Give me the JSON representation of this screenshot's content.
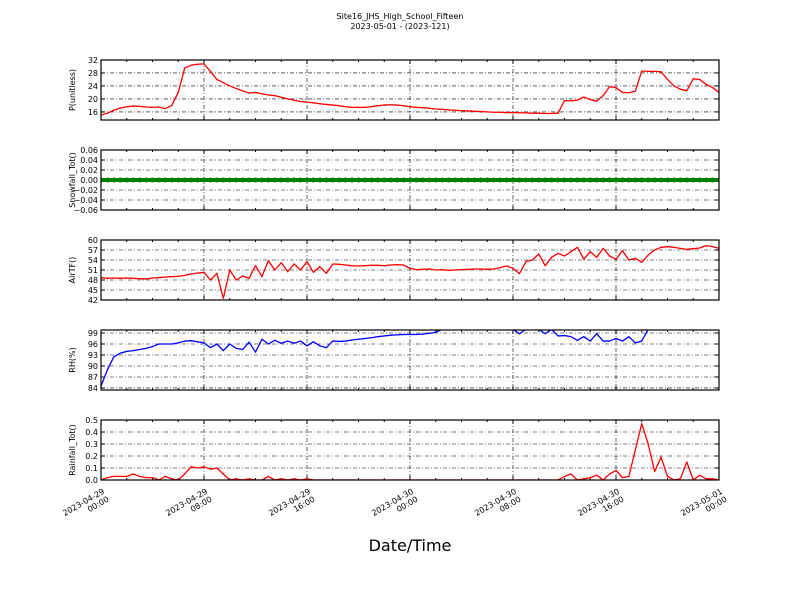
{
  "title": "Site16_JHS_High_School_Fifteen",
  "subtitle": "2023-05-01 - (2023-121)",
  "xlabel": "Date/Time",
  "chart_data": {
    "type": "line",
    "grid": true,
    "xlim": [
      "2023-04-29 00:00",
      "2023-05-01 00:00"
    ],
    "x_ticks": [
      "2023-04-29 00:00",
      "2023-04-29 08:00",
      "2023-04-29 16:00",
      "2023-04-30 00:00",
      "2023-04-30 08:00",
      "2023-04-30 16:00",
      "2023-05-01 00:00"
    ],
    "x_tick_labels": [
      [
        "2023-04-29",
        "00:00"
      ],
      [
        "2023-04-29",
        "08:00"
      ],
      [
        "2023-04-29",
        "16:00"
      ],
      [
        "2023-04-30",
        "00:00"
      ],
      [
        "2023-04-30",
        "08:00"
      ],
      [
        "2023-04-30",
        "16:00"
      ],
      [
        "2023-05-01",
        "00:00"
      ]
    ],
    "x": [
      "2023-04-29 00:00",
      "2023-04-29 00:30",
      "2023-04-29 01:00",
      "2023-04-29 01:30",
      "2023-04-29 02:00",
      "2023-04-29 02:30",
      "2023-04-29 03:00",
      "2023-04-29 03:30",
      "2023-04-29 04:00",
      "2023-04-29 04:30",
      "2023-04-29 05:00",
      "2023-04-29 05:30",
      "2023-04-29 06:00",
      "2023-04-29 06:30",
      "2023-04-29 07:00",
      "2023-04-29 07:30",
      "2023-04-29 08:00",
      "2023-04-29 08:30",
      "2023-04-29 09:00",
      "2023-04-29 09:30",
      "2023-04-29 10:00",
      "2023-04-29 10:30",
      "2023-04-29 11:00",
      "2023-04-29 11:30",
      "2023-04-29 12:00",
      "2023-04-29 12:30",
      "2023-04-29 13:00",
      "2023-04-29 13:30",
      "2023-04-29 14:00",
      "2023-04-29 14:30",
      "2023-04-29 15:00",
      "2023-04-29 15:30",
      "2023-04-29 16:00",
      "2023-04-29 16:30",
      "2023-04-29 17:00",
      "2023-04-29 17:30",
      "2023-04-29 18:00",
      "2023-04-29 18:30",
      "2023-04-29 19:00",
      "2023-04-29 19:30",
      "2023-04-29 20:00",
      "2023-04-29 20:30",
      "2023-04-29 21:00",
      "2023-04-29 21:30",
      "2023-04-29 22:00",
      "2023-04-29 22:30",
      "2023-04-29 23:00",
      "2023-04-29 23:30",
      "2023-04-30 00:00",
      "2023-04-30 00:30",
      "2023-04-30 01:00",
      "2023-04-30 01:30",
      "2023-04-30 02:00",
      "2023-04-30 02:30",
      "2023-04-30 03:00",
      "2023-04-30 03:30",
      "2023-04-30 04:00",
      "2023-04-30 04:30",
      "2023-04-30 05:00",
      "2023-04-30 05:30",
      "2023-04-30 06:00",
      "2023-04-30 06:30",
      "2023-04-30 07:00",
      "2023-04-30 07:30",
      "2023-04-30 08:00",
      "2023-04-30 08:30",
      "2023-04-30 09:00",
      "2023-04-30 09:30",
      "2023-04-30 10:00",
      "2023-04-30 10:30",
      "2023-04-30 11:00",
      "2023-04-30 11:30",
      "2023-04-30 12:00",
      "2023-04-30 12:30",
      "2023-04-30 13:00",
      "2023-04-30 13:30",
      "2023-04-30 14:00",
      "2023-04-30 14:30",
      "2023-04-30 15:00",
      "2023-04-30 15:30",
      "2023-04-30 16:00",
      "2023-04-30 16:30",
      "2023-04-30 17:00",
      "2023-04-30 17:30",
      "2023-04-30 18:00",
      "2023-04-30 18:30",
      "2023-04-30 19:00",
      "2023-04-30 19:30",
      "2023-04-30 20:00",
      "2023-04-30 20:30",
      "2023-04-30 21:00",
      "2023-04-30 21:30",
      "2023-04-30 22:00",
      "2023-04-30 22:30",
      "2023-04-30 23:00",
      "2023-04-30 23:30",
      "2023-05-01 00:00"
    ],
    "panels": [
      {
        "ylabel": "P(unitless)",
        "color": "#ff0000",
        "style": "line",
        "ylim": [
          13.5,
          32
        ],
        "yticks": [
          16,
          20,
          24,
          28,
          32
        ],
        "ytick_labels": [
          "16",
          "20",
          "24",
          "28",
          "32"
        ],
        "values": [
          15.0,
          15.6,
          16.5,
          17.2,
          17.6,
          17.8,
          17.7,
          17.5,
          17.4,
          17.5,
          17.0,
          18.0,
          22.0,
          29.5,
          30.4,
          30.7,
          30.8,
          28.5,
          26.0,
          25.0,
          24.0,
          23.2,
          22.5,
          21.8,
          22.0,
          21.6,
          21.2,
          21.0,
          20.5,
          20.0,
          19.6,
          19.2,
          19.0,
          18.8,
          18.5,
          18.3,
          18.1,
          17.9,
          17.6,
          17.4,
          17.4,
          17.4,
          17.6,
          17.9,
          18.1,
          18.2,
          18.1,
          17.9,
          17.6,
          17.4,
          17.3,
          17.1,
          16.9,
          16.8,
          16.6,
          16.5,
          16.4,
          16.3,
          16.2,
          16.1,
          16.0,
          15.9,
          15.9,
          15.8,
          15.8,
          15.7,
          15.7,
          15.6,
          15.6,
          15.5,
          15.5,
          15.6,
          19.5,
          19.4,
          19.6,
          20.6,
          19.8,
          19.3,
          21.0,
          23.8,
          23.5,
          22.0,
          21.9,
          22.4,
          28.6,
          28.5,
          28.5,
          28.4,
          26.0,
          24.0,
          23.0,
          22.5,
          26.2,
          26.0,
          24.5,
          23.5,
          22.0
        ]
      },
      {
        "ylabel": "Snowfall_Tot()",
        "color": "#008000",
        "style": "markers",
        "ylim": [
          -0.06,
          0.06
        ],
        "yticks": [
          -0.06,
          -0.04,
          -0.02,
          0,
          0.02,
          0.04,
          0.06
        ],
        "ytick_labels": [
          "−0.06",
          "−0.04",
          "−0.02",
          "0.00",
          "0.02",
          "0.04",
          "0.06"
        ],
        "values": [
          0,
          0,
          0,
          0,
          0,
          0,
          0,
          0,
          0,
          0,
          0,
          0,
          0,
          0,
          0,
          0,
          0,
          0,
          0,
          0,
          0,
          0,
          0,
          0,
          0,
          0,
          0,
          0,
          0,
          0,
          0,
          0,
          0,
          0,
          0,
          0,
          0,
          0,
          0,
          0,
          0,
          0,
          0,
          0,
          0,
          0,
          0,
          0,
          0,
          0,
          0,
          0,
          0,
          0,
          0,
          0,
          0,
          0,
          0,
          0,
          0,
          0,
          0,
          0,
          0,
          0,
          0,
          0,
          0,
          0,
          0,
          0,
          0,
          0,
          0,
          0,
          0,
          0,
          0,
          0,
          0,
          0,
          0,
          0,
          0,
          0,
          0,
          0,
          0,
          0,
          0,
          0,
          0,
          0,
          0,
          0,
          0
        ]
      },
      {
        "ylabel": "AirTF()",
        "color": "#ff0000",
        "style": "line",
        "ylim": [
          42,
          60
        ],
        "yticks": [
          42,
          45,
          48,
          51,
          54,
          57,
          60
        ],
        "ytick_labels": [
          "42",
          "45",
          "48",
          "51",
          "54",
          "57",
          "60"
        ],
        "values": [
          48.7,
          48.5,
          48.6,
          48.5,
          48.6,
          48.5,
          48.4,
          48.3,
          48.6,
          48.7,
          48.9,
          49.0,
          49.1,
          49.4,
          49.8,
          50.1,
          50.3,
          48.0,
          50.0,
          42.5,
          51.0,
          48.0,
          49.2,
          48.5,
          52.3,
          49.0,
          53.8,
          51.0,
          53.2,
          50.5,
          52.8,
          51.0,
          53.5,
          50.3,
          52.0,
          50.0,
          52.8,
          52.7,
          52.5,
          52.3,
          52.2,
          52.3,
          52.4,
          52.4,
          52.3,
          52.5,
          52.6,
          52.5,
          51.5,
          51.1,
          51.2,
          51.3,
          51.0,
          51.1,
          50.9,
          51.0,
          51.1,
          51.2,
          51.3,
          51.3,
          51.2,
          51.3,
          51.7,
          52.2,
          51.5,
          49.9,
          53.5,
          54.0,
          55.8,
          52.3,
          54.8,
          56.0,
          55.2,
          56.5,
          57.8,
          54.2,
          56.5,
          54.8,
          57.5,
          55.2,
          54.2,
          56.8,
          54.0,
          54.5,
          53.3,
          55.5,
          57.0,
          57.8,
          58.0,
          57.8,
          57.5,
          57.2,
          57.4,
          57.6,
          58.3,
          58.0,
          57.5
        ]
      },
      {
        "ylabel": "RH(%)",
        "color": "#0000ff",
        "style": "line",
        "ylim": [
          83.45,
          99.82
        ],
        "yticks": [
          84,
          87,
          90,
          93,
          96,
          99
        ],
        "ytick_labels": [
          "84",
          "87",
          "90",
          "93",
          "96",
          "99"
        ],
        "values": [
          84.5,
          89.0,
          92.5,
          93.5,
          94.0,
          94.2,
          94.5,
          94.8,
          95.3,
          96.0,
          96.0,
          96.0,
          96.3,
          96.8,
          96.9,
          96.6,
          96.3,
          95.0,
          96.0,
          94.2,
          96.0,
          94.8,
          94.5,
          96.5,
          93.8,
          97.3,
          96.0,
          97.0,
          96.2,
          96.8,
          96.2,
          96.8,
          95.5,
          96.6,
          95.5,
          95.0,
          96.8,
          96.7,
          96.8,
          97.1,
          97.3,
          97.5,
          97.7,
          98.0,
          98.2,
          98.4,
          98.5,
          98.6,
          98.6,
          98.6,
          98.7,
          98.9,
          99.2,
          100,
          100,
          100,
          100,
          100,
          100,
          100,
          100,
          100,
          100,
          100,
          100,
          98.8,
          100,
          100,
          100,
          98.8,
          100,
          98.2,
          98.3,
          98.0,
          97.0,
          98.0,
          96.8,
          98.8,
          96.8,
          96.8,
          97.5,
          96.8,
          98.0,
          96.3,
          96.8,
          100,
          100,
          100,
          100,
          100,
          100,
          100,
          100,
          100,
          100,
          100,
          100
        ]
      },
      {
        "ylabel": "Rainfall_Tot()",
        "color": "#ff0000",
        "style": "line",
        "ylim": [
          0,
          0.5
        ],
        "yticks": [
          0,
          0.1,
          0.2,
          0.3,
          0.4,
          0.5
        ],
        "ytick_labels": [
          "0.0",
          "0.1",
          "0.2",
          "0.3",
          "0.4",
          "0.5"
        ],
        "values": [
          0,
          0.02,
          0.03,
          0.03,
          0.03,
          0.05,
          0.03,
          0.02,
          0.02,
          0,
          0.03,
          0.01,
          0,
          0.05,
          0.11,
          0.1,
          0.11,
          0.09,
          0.1,
          0.05,
          0,
          0.01,
          0,
          0.01,
          0,
          0,
          0.03,
          0,
          0.01,
          0,
          0.01,
          0,
          0.01,
          0,
          0,
          0,
          0,
          0,
          0,
          0,
          0,
          0,
          0,
          0,
          0,
          0,
          0,
          0,
          0,
          0,
          0,
          0,
          0,
          0,
          0,
          0,
          0,
          0,
          0,
          0,
          0,
          0,
          0,
          0,
          0,
          0,
          0,
          0,
          0,
          0,
          0,
          0,
          0.03,
          0.05,
          0,
          0.01,
          0.02,
          0.04,
          0,
          0.05,
          0.08,
          0.02,
          0.03,
          0.25,
          0.47,
          0.3,
          0.07,
          0.19,
          0.03,
          0,
          0.01,
          0.15,
          0,
          0.04,
          0.01,
          0.01,
          0
        ]
      }
    ]
  }
}
